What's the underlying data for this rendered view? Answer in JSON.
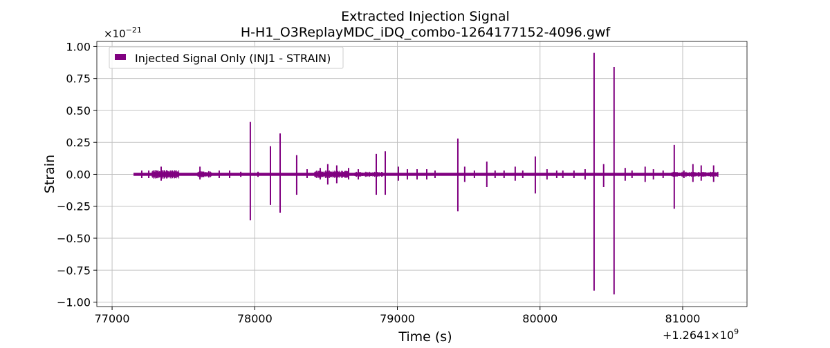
{
  "chart_data": {
    "type": "line",
    "title": "Extracted Injection Signal",
    "subtitle": "H-H1_O3ReplayMDC_iDQ_combo-1264177152-4096.gwf",
    "xlabel": "Time (s)",
    "ylabel": "Strain",
    "x_offset_label": "+1.2641×10",
    "x_offset_exp": "9",
    "y_scale_label": "×10",
    "y_scale_exp": "−21",
    "xlim": [
      76893,
      81451
    ],
    "ylim": [
      -1.035,
      1.04
    ],
    "xticks": [
      77000,
      78000,
      79000,
      80000,
      81000
    ],
    "xtick_labels": [
      "77000",
      "78000",
      "79000",
      "80000",
      "81000"
    ],
    "yticks": [
      1.0,
      0.75,
      0.5,
      0.25,
      0.0,
      -0.25,
      -0.5,
      -0.75,
      -1.0
    ],
    "ytick_labels": [
      "1.00",
      "0.75",
      "0.50",
      "0.25",
      "0.00",
      "−0.25",
      "−0.50",
      "−0.75",
      "−1.00"
    ],
    "grid": true,
    "legend": {
      "placement": "top-left",
      "entries": [
        "Injected Signal Only (INJ1 - STRAIN)"
      ]
    },
    "series_color": "#800080",
    "data_start": 77150,
    "data_end": 81250,
    "baseline_amplitude": 0.012,
    "noisy_regions": [
      {
        "start": 77280,
        "end": 77470,
        "amp": 0.035
      },
      {
        "start": 77600,
        "end": 77700,
        "amp": 0.025
      },
      {
        "start": 78420,
        "end": 78660,
        "amp": 0.03
      },
      {
        "start": 78700,
        "end": 78900,
        "amp": 0.02
      },
      {
        "start": 80920,
        "end": 81250,
        "amp": 0.02
      }
    ],
    "events": [
      {
        "t": 77208,
        "max": 0.03,
        "min": -0.03
      },
      {
        "t": 77257,
        "max": 0.03,
        "min": -0.03
      },
      {
        "t": 77344,
        "max": 0.06,
        "min": -0.05
      },
      {
        "t": 77616,
        "max": 0.06,
        "min": -0.04
      },
      {
        "t": 77751,
        "max": 0.03,
        "min": -0.03
      },
      {
        "t": 77824,
        "max": 0.03,
        "min": -0.03
      },
      {
        "t": 77902,
        "max": 0.02,
        "min": -0.02
      },
      {
        "t": 77969,
        "max": 0.41,
        "min": -0.36
      },
      {
        "t": 78023,
        "max": 0.02,
        "min": -0.02
      },
      {
        "t": 78110,
        "max": 0.22,
        "min": -0.24
      },
      {
        "t": 78178,
        "max": 0.32,
        "min": -0.3
      },
      {
        "t": 78294,
        "max": 0.15,
        "min": -0.16
      },
      {
        "t": 78367,
        "max": 0.04,
        "min": -0.03
      },
      {
        "t": 78459,
        "max": 0.05,
        "min": -0.04
      },
      {
        "t": 78512,
        "max": 0.08,
        "min": -0.08
      },
      {
        "t": 78575,
        "max": 0.07,
        "min": -0.07
      },
      {
        "t": 78658,
        "max": 0.05,
        "min": -0.04
      },
      {
        "t": 78726,
        "max": 0.04,
        "min": -0.04
      },
      {
        "t": 78852,
        "max": 0.16,
        "min": -0.16
      },
      {
        "t": 78915,
        "max": 0.18,
        "min": -0.16
      },
      {
        "t": 79007,
        "max": 0.06,
        "min": -0.05
      },
      {
        "t": 79070,
        "max": 0.04,
        "min": -0.04
      },
      {
        "t": 79138,
        "max": 0.04,
        "min": -0.04
      },
      {
        "t": 79206,
        "max": 0.04,
        "min": -0.04
      },
      {
        "t": 79264,
        "max": 0.03,
        "min": -0.03
      },
      {
        "t": 79424,
        "max": 0.28,
        "min": -0.29
      },
      {
        "t": 79472,
        "max": 0.06,
        "min": -0.06
      },
      {
        "t": 79540,
        "max": 0.03,
        "min": -0.03
      },
      {
        "t": 79627,
        "max": 0.1,
        "min": -0.1
      },
      {
        "t": 79685,
        "max": 0.03,
        "min": -0.03
      },
      {
        "t": 79748,
        "max": 0.03,
        "min": -0.03
      },
      {
        "t": 79826,
        "max": 0.06,
        "min": -0.05
      },
      {
        "t": 79879,
        "max": 0.03,
        "min": -0.03
      },
      {
        "t": 79967,
        "max": 0.14,
        "min": -0.15
      },
      {
        "t": 80049,
        "max": 0.04,
        "min": -0.04
      },
      {
        "t": 80117,
        "max": 0.03,
        "min": -0.03
      },
      {
        "t": 80160,
        "max": 0.03,
        "min": -0.03
      },
      {
        "t": 80238,
        "max": 0.03,
        "min": -0.03
      },
      {
        "t": 80316,
        "max": 0.04,
        "min": -0.04
      },
      {
        "t": 80379,
        "max": 0.95,
        "min": -0.91
      },
      {
        "t": 80446,
        "max": 0.08,
        "min": -0.1
      },
      {
        "t": 80519,
        "max": 0.84,
        "min": -0.94
      },
      {
        "t": 80597,
        "max": 0.05,
        "min": -0.05
      },
      {
        "t": 80645,
        "max": 0.03,
        "min": -0.03
      },
      {
        "t": 80737,
        "max": 0.06,
        "min": -0.06
      },
      {
        "t": 80795,
        "max": 0.04,
        "min": -0.04
      },
      {
        "t": 80863,
        "max": 0.03,
        "min": -0.03
      },
      {
        "t": 80941,
        "max": 0.23,
        "min": -0.27
      },
      {
        "t": 81009,
        "max": 0.03,
        "min": -0.03
      },
      {
        "t": 81072,
        "max": 0.08,
        "min": -0.06
      },
      {
        "t": 81130,
        "max": 0.07,
        "min": -0.05
      },
      {
        "t": 81217,
        "max": 0.07,
        "min": -0.06
      }
    ]
  }
}
